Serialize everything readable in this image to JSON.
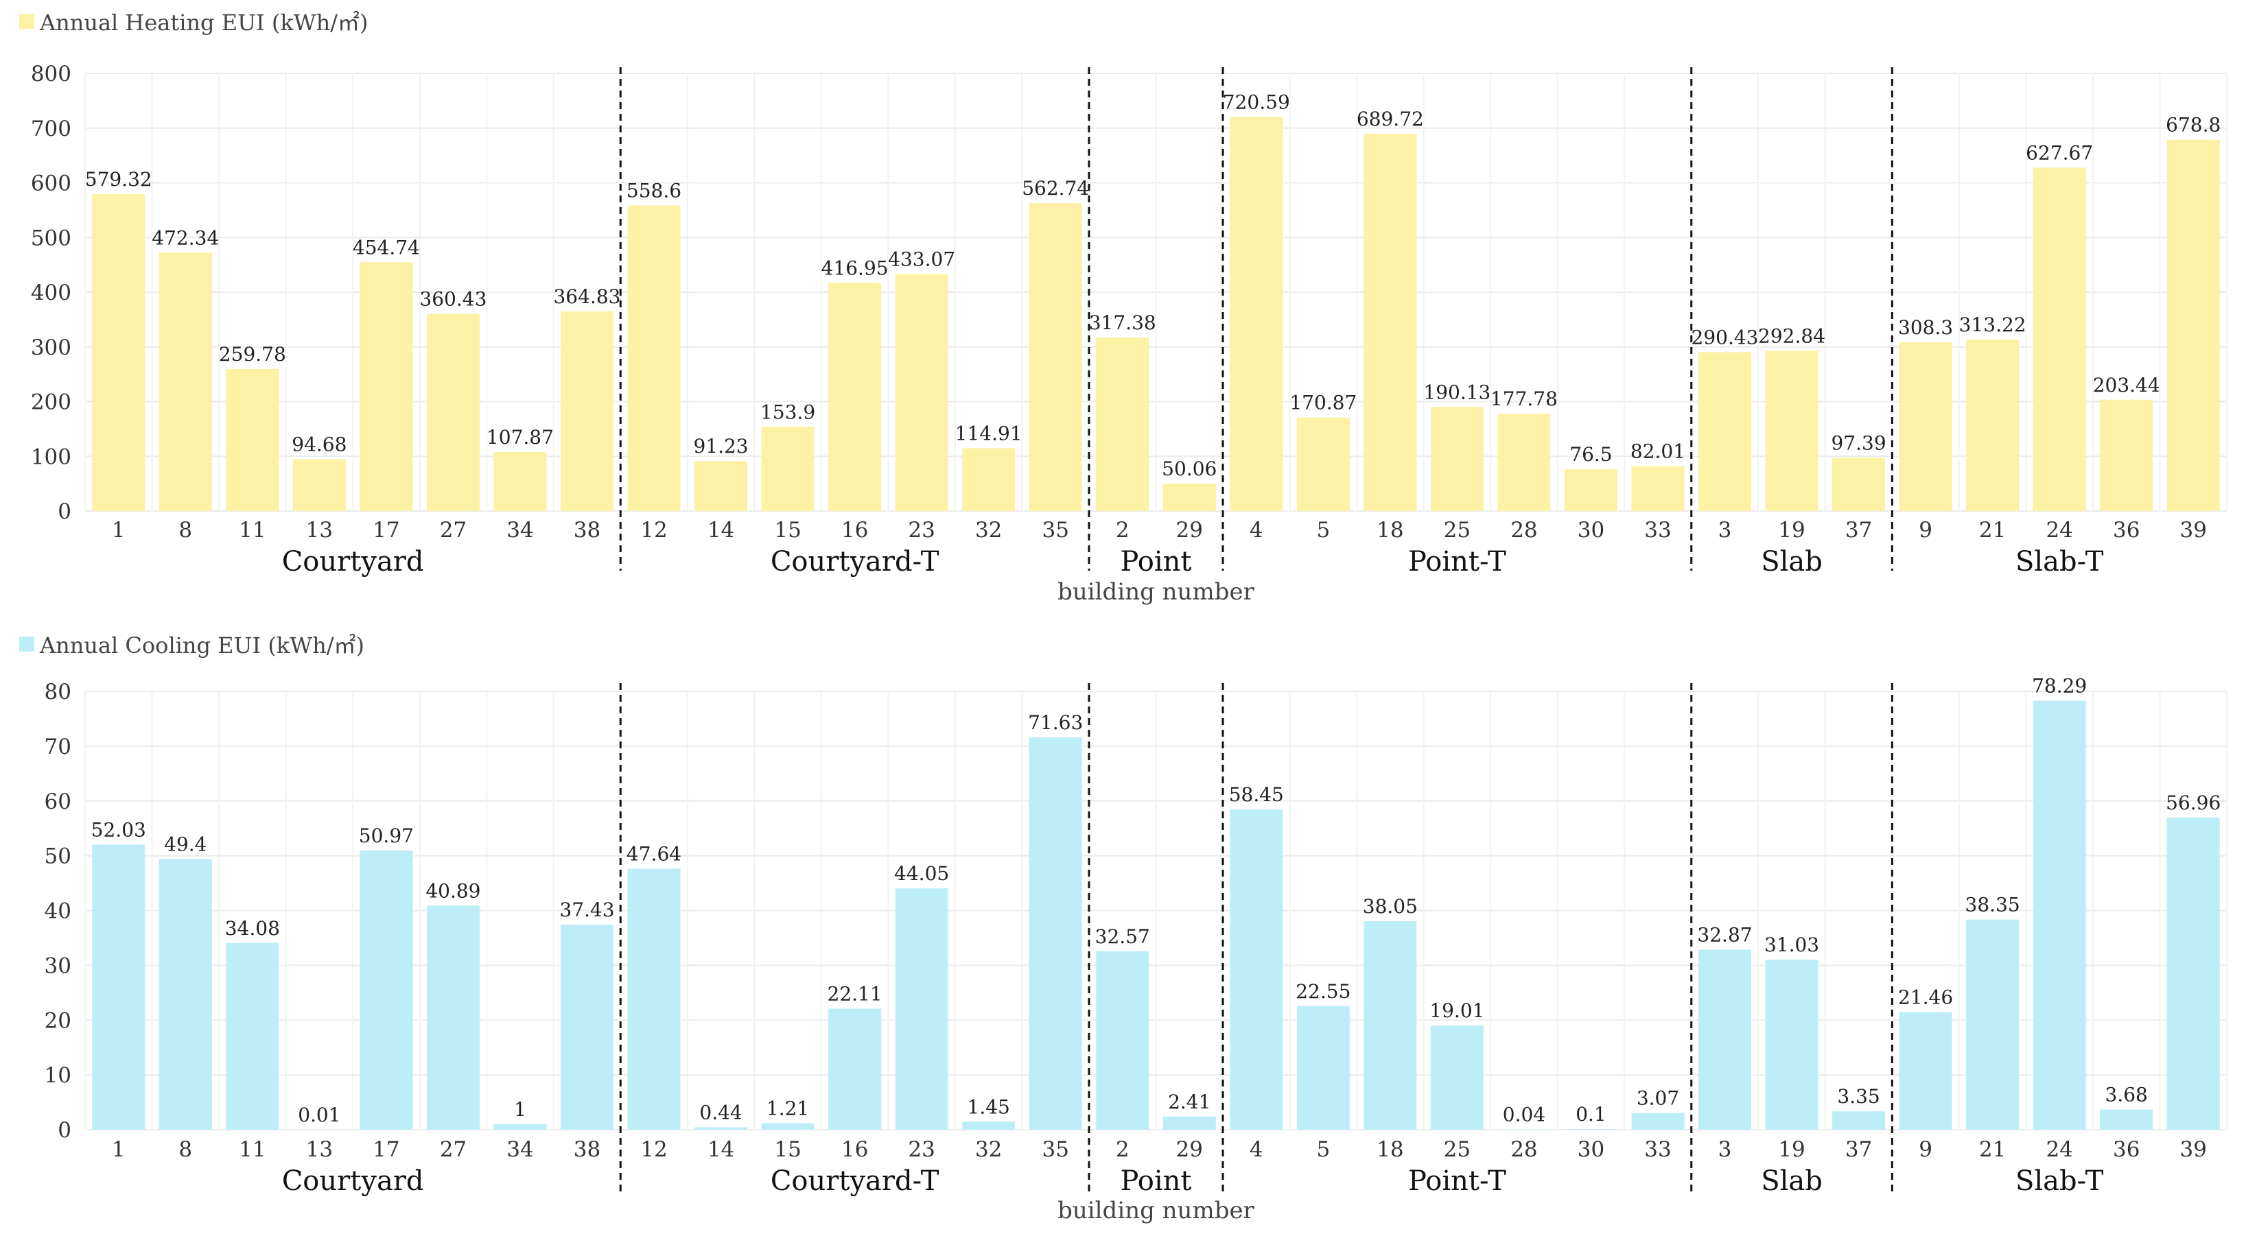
{
  "chart_data": [
    {
      "type": "bar",
      "legend": "Annual Heating EUI (kWh/㎡)",
      "color": "#fcf1a5",
      "xlabel": "building number",
      "ylim": [
        0,
        800
      ],
      "yticks": [
        0,
        100,
        200,
        300,
        400,
        500,
        600,
        700,
        800
      ],
      "groups": [
        {
          "name": "Courtyard",
          "categories": [
            "1",
            "8",
            "11",
            "13",
            "17",
            "27",
            "34",
            "38"
          ],
          "values": [
            579.32,
            472.34,
            259.78,
            94.68,
            454.74,
            360.43,
            107.87,
            364.83
          ]
        },
        {
          "name": "Courtyard-T",
          "categories": [
            "12",
            "14",
            "15",
            "16",
            "23",
            "32",
            "35"
          ],
          "values": [
            558.6,
            91.23,
            153.9,
            416.95,
            433.07,
            114.91,
            562.74
          ]
        },
        {
          "name": "Point",
          "categories": [
            "2",
            "29"
          ],
          "values": [
            317.38,
            50.06
          ]
        },
        {
          "name": "Point-T",
          "categories": [
            "4",
            "5",
            "18",
            "25",
            "28",
            "30",
            "33"
          ],
          "values": [
            720.59,
            170.87,
            689.72,
            190.13,
            177.78,
            76.5,
            82.01
          ]
        },
        {
          "name": "Slab",
          "categories": [
            "3",
            "19",
            "37"
          ],
          "values": [
            290.43,
            292.84,
            97.39
          ]
        },
        {
          "name": "Slab-T",
          "categories": [
            "9",
            "21",
            "24",
            "36",
            "39"
          ],
          "values": [
            308.3,
            313.22,
            627.67,
            203.44,
            678.8
          ]
        }
      ]
    },
    {
      "type": "bar",
      "legend": "Annual Cooling EUI (kWh/㎡)",
      "color": "#bdeef8",
      "xlabel": "building number",
      "ylim": [
        0,
        80
      ],
      "yticks": [
        0,
        10,
        20,
        30,
        40,
        50,
        60,
        70,
        80
      ],
      "groups": [
        {
          "name": "Courtyard",
          "categories": [
            "1",
            "8",
            "11",
            "13",
            "17",
            "27",
            "34",
            "38"
          ],
          "values": [
            52.03,
            49.4,
            34.08,
            0.01,
            50.97,
            40.89,
            1,
            37.43
          ]
        },
        {
          "name": "Courtyard-T",
          "categories": [
            "12",
            "14",
            "15",
            "16",
            "23",
            "32",
            "35"
          ],
          "values": [
            47.64,
            0.44,
            1.21,
            22.11,
            44.05,
            1.45,
            71.63
          ]
        },
        {
          "name": "Point",
          "categories": [
            "2",
            "29"
          ],
          "values": [
            32.57,
            2.41
          ]
        },
        {
          "name": "Point-T",
          "categories": [
            "4",
            "5",
            "18",
            "25",
            "28",
            "30",
            "33"
          ],
          "values": [
            58.45,
            22.55,
            38.05,
            19.01,
            0.04,
            0.1,
            3.07
          ]
        },
        {
          "name": "Slab",
          "categories": [
            "3",
            "19",
            "37"
          ],
          "values": [
            32.87,
            31.03,
            3.35
          ]
        },
        {
          "name": "Slab-T",
          "categories": [
            "9",
            "21",
            "24",
            "36",
            "39"
          ],
          "values": [
            21.46,
            38.35,
            78.29,
            3.68,
            56.96
          ]
        }
      ]
    }
  ]
}
